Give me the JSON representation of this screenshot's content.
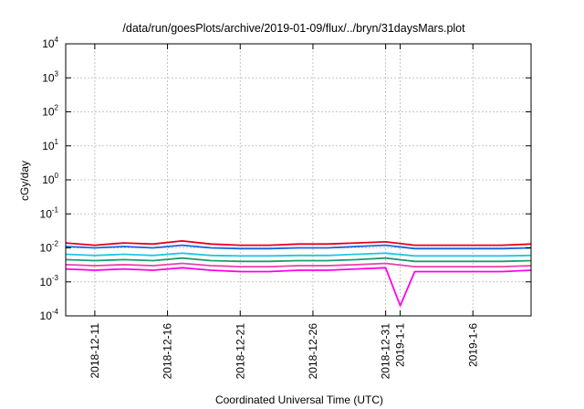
{
  "chart_data": {
    "type": "line",
    "title": "/data/run/goesPlots/archive/2019-01-09/flux/../bryn/31daysMars.plot",
    "xlabel": "Coordinated Universal Time (UTC)",
    "ylabel": "cGy/day",
    "yscale": "log",
    "grid": true,
    "ylim": [
      0.0001,
      10000
    ],
    "xlim": [
      "2018-12-09",
      "2019-01-10"
    ],
    "y_ticks": [
      {
        "base": "10",
        "exp": "-4"
      },
      {
        "base": "10",
        "exp": "-3"
      },
      {
        "base": "10",
        "exp": "-2"
      },
      {
        "base": "10",
        "exp": "-1"
      },
      {
        "base": "10",
        "exp": "0"
      },
      {
        "base": "10",
        "exp": "1"
      },
      {
        "base": "10",
        "exp": "2"
      },
      {
        "base": "10",
        "exp": "3"
      },
      {
        "base": "10",
        "exp": "4"
      }
    ],
    "x_ticks": [
      "2018-12-11",
      "2018-12-16",
      "2018-12-21",
      "2018-12-26",
      "2018-12-31",
      "2019-1-1",
      "2019-1-6"
    ],
    "x_tick_dates": [
      "2018-12-11",
      "2018-12-16",
      "2018-12-21",
      "2018-12-26",
      "2018-12-31",
      "2019-01-01",
      "2019-01-06"
    ],
    "series": [
      {
        "color": "#e8001c",
        "x": [
          "2018-12-09",
          "2018-12-11",
          "2018-12-13",
          "2018-12-15",
          "2018-12-17",
          "2018-12-19",
          "2018-12-21",
          "2018-12-23",
          "2018-12-25",
          "2018-12-27",
          "2018-12-29",
          "2018-12-31",
          "2019-01-02",
          "2019-01-04",
          "2019-01-06",
          "2019-01-08",
          "2019-01-10"
        ],
        "y": [
          0.014,
          0.012,
          0.014,
          0.013,
          0.016,
          0.013,
          0.012,
          0.012,
          0.013,
          0.013,
          0.014,
          0.015,
          0.012,
          0.012,
          0.012,
          0.012,
          0.013
        ]
      },
      {
        "color": "#1565e0",
        "x": [
          "2018-12-09",
          "2018-12-11",
          "2018-12-13",
          "2018-12-15",
          "2018-12-17",
          "2018-12-19",
          "2018-12-21",
          "2018-12-23",
          "2018-12-25",
          "2018-12-27",
          "2018-12-29",
          "2018-12-31",
          "2019-01-02",
          "2019-01-04",
          "2019-01-06",
          "2019-01-08",
          "2019-01-10"
        ],
        "y": [
          0.011,
          0.01,
          0.011,
          0.01,
          0.012,
          0.01,
          0.0095,
          0.0095,
          0.01,
          0.01,
          0.011,
          0.012,
          0.0095,
          0.0095,
          0.0095,
          0.0095,
          0.01
        ]
      },
      {
        "color": "#22c6e6",
        "x": [
          "2018-12-09",
          "2018-12-11",
          "2018-12-13",
          "2018-12-15",
          "2018-12-17",
          "2018-12-19",
          "2018-12-21",
          "2018-12-23",
          "2018-12-25",
          "2018-12-27",
          "2018-12-29",
          "2018-12-31",
          "2019-01-02",
          "2019-01-04",
          "2019-01-06",
          "2019-01-08",
          "2019-01-10"
        ],
        "y": [
          0.0065,
          0.006,
          0.0065,
          0.006,
          0.007,
          0.006,
          0.0058,
          0.0058,
          0.006,
          0.006,
          0.0065,
          0.007,
          0.0058,
          0.0058,
          0.0058,
          0.0058,
          0.006
        ]
      },
      {
        "color": "#1c9d6e",
        "x": [
          "2018-12-09",
          "2018-12-11",
          "2018-12-13",
          "2018-12-15",
          "2018-12-17",
          "2018-12-19",
          "2018-12-21",
          "2018-12-23",
          "2018-12-25",
          "2018-12-27",
          "2018-12-29",
          "2018-12-31",
          "2019-01-02",
          "2019-01-04",
          "2019-01-06",
          "2019-01-08",
          "2019-01-10"
        ],
        "y": [
          0.0045,
          0.0042,
          0.0045,
          0.0042,
          0.005,
          0.0042,
          0.004,
          0.004,
          0.0042,
          0.0042,
          0.0045,
          0.005,
          0.004,
          0.004,
          0.004,
          0.004,
          0.0042
        ]
      },
      {
        "color": "#ee3fa8",
        "x": [
          "2018-12-09",
          "2018-12-11",
          "2018-12-13",
          "2018-12-15",
          "2018-12-17",
          "2018-12-19",
          "2018-12-21",
          "2018-12-23",
          "2018-12-25",
          "2018-12-27",
          "2018-12-29",
          "2018-12-31",
          "2019-01-02",
          "2019-01-04",
          "2019-01-06",
          "2019-01-08",
          "2019-01-10"
        ],
        "y": [
          0.0032,
          0.003,
          0.0032,
          0.003,
          0.0035,
          0.003,
          0.0028,
          0.0028,
          0.003,
          0.003,
          0.0032,
          0.0035,
          0.0028,
          0.0028,
          0.0028,
          0.0028,
          0.003
        ]
      },
      {
        "color": "#ff00ee",
        "x": [
          "2018-12-09",
          "2018-12-11",
          "2018-12-13",
          "2018-12-15",
          "2018-12-17",
          "2018-12-19",
          "2018-12-21",
          "2018-12-23",
          "2018-12-25",
          "2018-12-27",
          "2018-12-29",
          "2018-12-31",
          "2019-01-01",
          "2019-01-02",
          "2019-01-04",
          "2019-01-06",
          "2019-01-08",
          "2019-01-10"
        ],
        "y": [
          0.0024,
          0.0022,
          0.0024,
          0.0022,
          0.0026,
          0.0022,
          0.002,
          0.002,
          0.0022,
          0.0022,
          0.0024,
          0.0026,
          0.0002,
          0.002,
          0.002,
          0.002,
          0.002,
          0.0022
        ]
      }
    ]
  }
}
